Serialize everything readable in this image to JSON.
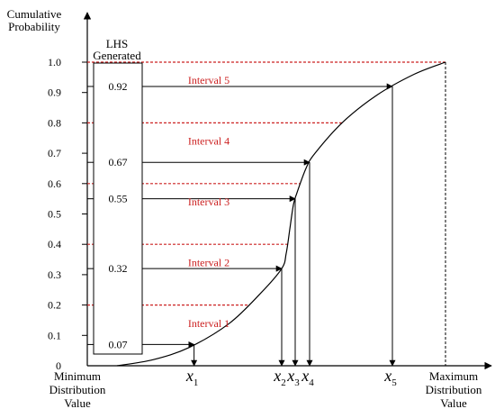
{
  "axis": {
    "y_title_line1": "Cumulative",
    "y_title_line2": "Probability",
    "ticks": [
      {
        "value": 0,
        "label": "0"
      },
      {
        "value": 0.1,
        "label": "0.1"
      },
      {
        "value": 0.2,
        "label": "0.2"
      },
      {
        "value": 0.3,
        "label": "0.3"
      },
      {
        "value": 0.4,
        "label": "0.4"
      },
      {
        "value": 0.5,
        "label": "0.5"
      },
      {
        "value": 0.6,
        "label": "0.6"
      },
      {
        "value": 0.7,
        "label": "0.7"
      },
      {
        "value": 0.8,
        "label": "0.8"
      },
      {
        "value": 0.9,
        "label": "0.9"
      },
      {
        "value": 1.0,
        "label": "1.0"
      }
    ],
    "x_min_label": [
      "Minimum",
      "Distribution",
      "Value"
    ],
    "x_max_label": [
      "Maximum",
      "Distribution",
      "Value"
    ]
  },
  "lhs_box": {
    "title_line1": "LHS",
    "title_line2": "Generated"
  },
  "samples": [
    {
      "value": "0.07",
      "var": "x",
      "sub": "1"
    },
    {
      "value": "0.32",
      "var": "x",
      "sub": "2"
    },
    {
      "value": "0.55",
      "var": "x",
      "sub": "3"
    },
    {
      "value": "0.67",
      "var": "x",
      "sub": "4"
    },
    {
      "value": "0.92",
      "var": "x",
      "sub": "5"
    }
  ],
  "intervals": [
    {
      "label": "Interval 1"
    },
    {
      "label": "Interval 2"
    },
    {
      "label": "Interval 3"
    },
    {
      "label": "Interval 4"
    },
    {
      "label": "Interval 5"
    }
  ],
  "colors": {
    "interval_text": "#cc2222",
    "interval_line": "#cc2222",
    "axis": "#000000"
  }
}
